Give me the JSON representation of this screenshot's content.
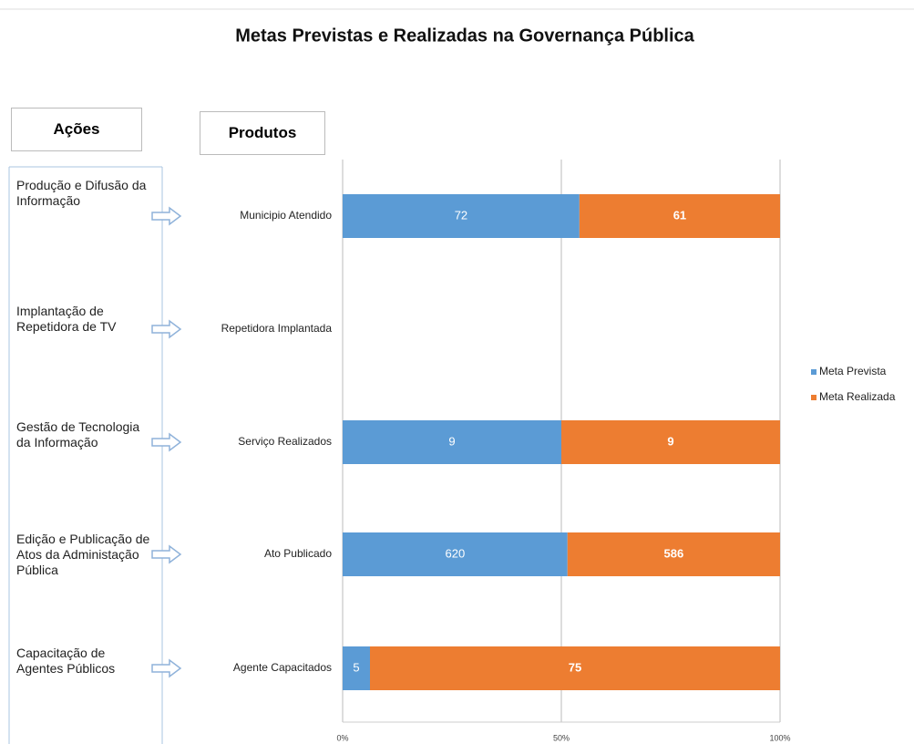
{
  "chart_data": {
    "type": "bar",
    "orientation": "horizontal",
    "stacking": "percent",
    "title": "Metas Previstas e Realizadas na Governança Pública",
    "categories": [
      "Municipio Atendido",
      "Repetidora Implantada",
      "Serviço Realizados",
      "Ato Publicado",
      "Agente Capacitados"
    ],
    "series": [
      {
        "name": "Meta Prevista",
        "color": "#5b9bd5",
        "values": [
          72,
          null,
          9,
          620,
          5
        ]
      },
      {
        "name": "Meta Realizada",
        "color": "#ed7d31",
        "values": [
          61,
          null,
          9,
          586,
          75
        ]
      }
    ],
    "xlim": [
      0,
      100
    ],
    "xticks": [
      {
        "value": 0,
        "label": "0%"
      },
      {
        "value": 50,
        "label": "50%"
      },
      {
        "value": 100,
        "label": "100%"
      }
    ],
    "grid": true,
    "legend": "right"
  },
  "panel": {
    "actions_header": "Ações",
    "products_header": "Produtos",
    "actions": [
      "Produção e Difusão da Informação",
      "Implantação de Repetidora de TV",
      "Gestão de Tecnologia da Informação",
      "Edição e Publicação de Atos da Administação Pública",
      "Capacitação de Agentes Públicos"
    ]
  }
}
